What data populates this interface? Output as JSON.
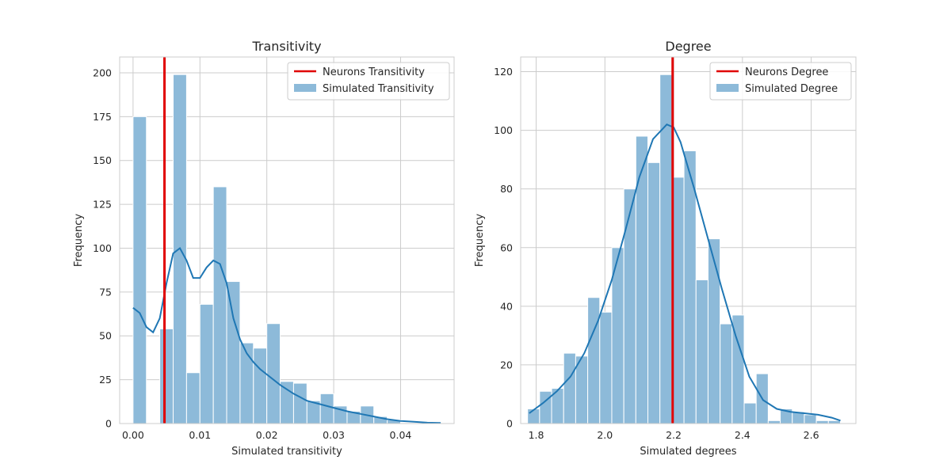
{
  "chart_data": [
    {
      "type": "bar",
      "title": "Transitivity",
      "xlabel": "Simulated transitivity",
      "ylabel": "Frequency",
      "xlim": [
        -0.002,
        0.048
      ],
      "ylim": [
        0,
        209
      ],
      "xticks": [
        0.0,
        0.01,
        0.02,
        0.03,
        0.04
      ],
      "xtick_labels": [
        "0.00",
        "0.01",
        "0.02",
        "0.03",
        "0.04"
      ],
      "yticks": [
        0,
        25,
        50,
        75,
        100,
        125,
        150,
        175,
        200
      ],
      "ytick_labels": [
        "0",
        "25",
        "50",
        "75",
        "100",
        "125",
        "150",
        "175",
        "200"
      ],
      "bin_edges": [
        0.0,
        0.002,
        0.004,
        0.006,
        0.008,
        0.01,
        0.012,
        0.014,
        0.016,
        0.018,
        0.02,
        0.022,
        0.024,
        0.026,
        0.028,
        0.03,
        0.032,
        0.034,
        0.036,
        0.038,
        0.04
      ],
      "counts": [
        175,
        0,
        54,
        199,
        29,
        68,
        135,
        81,
        46,
        43,
        57,
        24,
        23,
        13,
        17,
        10,
        7,
        10,
        4,
        2
      ],
      "kde": {
        "x": [
          0.0,
          0.001,
          0.002,
          0.003,
          0.004,
          0.005,
          0.006,
          0.007,
          0.008,
          0.009,
          0.01,
          0.011,
          0.012,
          0.013,
          0.014,
          0.015,
          0.016,
          0.017,
          0.018,
          0.019,
          0.02,
          0.022,
          0.024,
          0.026,
          0.028,
          0.03,
          0.032,
          0.034,
          0.036,
          0.038,
          0.04,
          0.042,
          0.044,
          0.046
        ],
        "y": [
          66,
          63,
          55,
          52,
          60,
          80,
          97,
          100,
          93,
          83,
          83,
          89,
          93,
          91,
          80,
          60,
          48,
          40,
          35,
          31,
          28,
          22,
          17,
          13,
          11,
          9,
          7,
          5.5,
          4,
          2.5,
          1.5,
          1,
          0.5,
          0.3
        ]
      },
      "reference_value": 0.0047,
      "legend": {
        "position": "top-right",
        "entries": [
          "Neurons Transitivity",
          "Simulated Transitivity"
        ]
      },
      "colors": {
        "bars": "#8dbad9",
        "kde": "#1f77b4",
        "reference": "#e00000"
      }
    },
    {
      "type": "bar",
      "title": "Degree",
      "xlabel": "Simulated degrees",
      "ylabel": "Frequency",
      "xlim": [
        1.755,
        2.73
      ],
      "ylim": [
        0,
        125
      ],
      "xticks": [
        1.8,
        2.0,
        2.2,
        2.4,
        2.6
      ],
      "xtick_labels": [
        "1.8",
        "2.0",
        "2.2",
        "2.4",
        "2.6"
      ],
      "yticks": [
        0,
        20,
        40,
        60,
        80,
        100,
        120
      ],
      "ytick_labels": [
        "0",
        "20",
        "40",
        "60",
        "80",
        "100",
        "120"
      ],
      "bin_edges": [
        1.775,
        1.81,
        1.845,
        1.88,
        1.915,
        1.95,
        1.985,
        2.02,
        2.055,
        2.09,
        2.125,
        2.16,
        2.195,
        2.23,
        2.265,
        2.3,
        2.335,
        2.37,
        2.405,
        2.44,
        2.475,
        2.51,
        2.545,
        2.58,
        2.615,
        2.65,
        2.685
      ],
      "counts": [
        5,
        11,
        12,
        24,
        23,
        43,
        38,
        60,
        80,
        98,
        89,
        119,
        84,
        93,
        49,
        63,
        34,
        37,
        7,
        17,
        1,
        5,
        4,
        3,
        1,
        1
      ],
      "kde": {
        "x": [
          1.78,
          1.82,
          1.86,
          1.9,
          1.94,
          1.98,
          2.02,
          2.06,
          2.1,
          2.14,
          2.18,
          2.2,
          2.22,
          2.26,
          2.3,
          2.34,
          2.38,
          2.42,
          2.46,
          2.5,
          2.54,
          2.58,
          2.62,
          2.66,
          2.685
        ],
        "y": [
          3.5,
          7,
          11,
          16,
          24,
          35,
          49,
          66,
          84,
          97,
          102,
          101,
          96,
          80,
          63,
          46,
          30,
          16,
          8,
          5,
          4,
          3.5,
          3,
          2,
          1
        ]
      },
      "reference_value": 2.197,
      "legend": {
        "position": "top-right",
        "entries": [
          "Neurons Degree",
          "Simulated Degree"
        ]
      },
      "colors": {
        "bars": "#8dbad9",
        "kde": "#1f77b4",
        "reference": "#e00000"
      }
    }
  ]
}
